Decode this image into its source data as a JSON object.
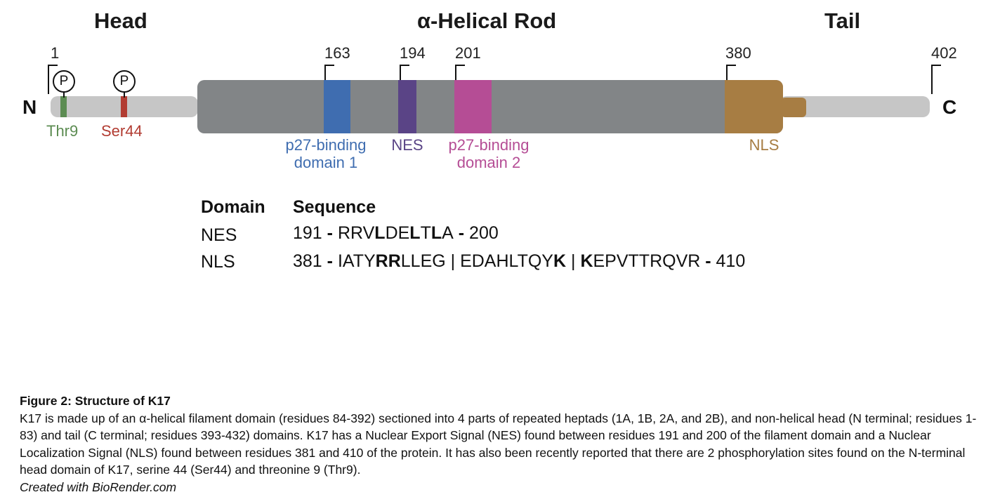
{
  "regions": {
    "head": "Head",
    "rod": "α-Helical Rod",
    "tail": "Tail"
  },
  "termini": {
    "n": "N",
    "c": "C"
  },
  "residue_markers": {
    "r1": "1",
    "r163": "163",
    "r194": "194",
    "r201": "201",
    "r380": "380",
    "r402": "402"
  },
  "phospho": {
    "symbol": "P",
    "thr9": "Thr9",
    "ser44": "Ser44"
  },
  "domains": {
    "p27_1_line1": "p27-binding",
    "p27_1_line2": "domain 1",
    "nes": "NES",
    "p27_2_line1": "p27-binding",
    "p27_2_line2": "domain 2",
    "nls": "NLS"
  },
  "colors": {
    "backbone": "#c6c6c6",
    "rod": "#828587",
    "p27_domain1": "#3f6db0",
    "nes": "#5a4486",
    "p27_domain2": "#b54d95",
    "nls": "#a77d43",
    "thr9": "#5c8c52",
    "ser44": "#b23c32"
  },
  "table": {
    "header_domain": "Domain",
    "header_sequence": "Sequence",
    "rows": [
      {
        "domain": "NES",
        "start": "191",
        "dash1": " - ",
        "seq": [
          {
            "t": "RRV",
            "b": false
          },
          {
            "t": "L",
            "b": true
          },
          {
            "t": "DE",
            "b": false
          },
          {
            "t": "L",
            "b": true
          },
          {
            "t": "T",
            "b": false
          },
          {
            "t": "L",
            "b": true
          },
          {
            "t": "A",
            "b": false
          }
        ],
        "dash2": " - ",
        "end": "200"
      },
      {
        "domain": "NLS",
        "start": "381",
        "dash1": " - ",
        "seq": [
          {
            "t": "IATY",
            "b": false
          },
          {
            "t": "RR",
            "b": true
          },
          {
            "t": "LLEG | EDAHLTQY",
            "b": false
          },
          {
            "t": "K",
            "b": true
          },
          {
            "t": " | ",
            "b": false
          },
          {
            "t": "K",
            "b": true
          },
          {
            "t": "EPVTTRQVR",
            "b": false
          }
        ],
        "dash2": " - ",
        "end": "410"
      }
    ]
  },
  "caption": {
    "title": "Figure 2: Structure of K17",
    "body": "K17 is made up of an α-helical filament domain (residues 84-392) sectioned into 4 parts of repeated heptads (1A, 1B, 2A, and 2B), and non-helical head (N terminal; residues 1-83) and tail (C terminal; residues 393-432) domains. K17 has a Nuclear Export Signal (NES) found between residues 191 and 200 of the filament domain and a Nuclear Localization Signal (NLS) found between residues 381 and 410 of the protein. It has also been recently reported that there are 2 phosphorylation sites found on the N-terminal head domain of K17, serine 44 (Ser44) and threonine 9 (Thr9).",
    "credit": "Created with BioRender.com"
  }
}
